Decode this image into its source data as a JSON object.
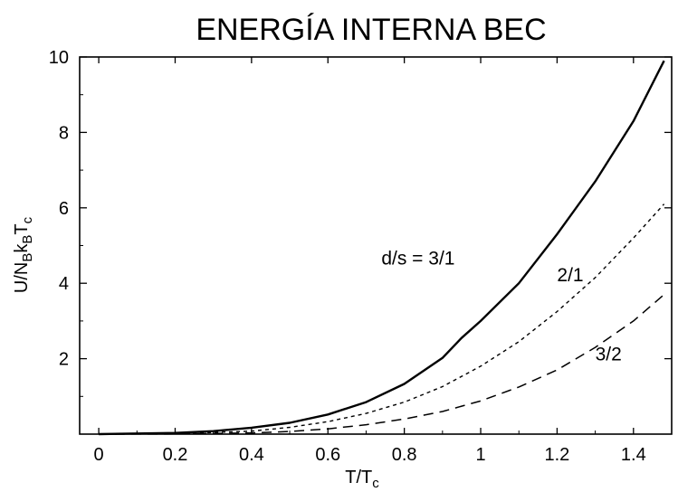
{
  "chart_data": {
    "type": "line",
    "title": "ENERGÍA INTERNA BEC",
    "xlabel": {
      "base": "T/T",
      "sub": "c"
    },
    "ylabel": {
      "parts": [
        {
          "t": "U/N",
          "sub": false
        },
        {
          "t": "B",
          "sub": true
        },
        {
          "t": "k",
          "sub": false
        },
        {
          "t": "B",
          "sub": true
        },
        {
          "t": "T",
          "sub": false
        },
        {
          "t": "c",
          "sub": true
        }
      ]
    },
    "xlim": [
      -0.05,
      1.5
    ],
    "ylim": [
      0,
      10
    ],
    "x_ticks": [
      0,
      0.2,
      0.4,
      0.6,
      0.8,
      1,
      1.2,
      1.4
    ],
    "x_tick_labels": [
      "0",
      "0.2",
      "0.4",
      "0.6",
      "0.8",
      "1",
      "1.2",
      "1.4"
    ],
    "y_ticks": [
      2,
      4,
      6,
      8,
      10
    ],
    "y_tick_labels": [
      "2",
      "4",
      "6",
      "8",
      "10"
    ],
    "grid": false,
    "series": [
      {
        "name": "d/s = 3/1",
        "style": "solid",
        "x": [
          0,
          0.2,
          0.3,
          0.4,
          0.5,
          0.6,
          0.7,
          0.8,
          0.9,
          0.95,
          1.0,
          1.1,
          1.2,
          1.3,
          1.4,
          1.48
        ],
        "y": [
          0,
          0.03,
          0.08,
          0.17,
          0.3,
          0.52,
          0.85,
          1.33,
          2.02,
          2.55,
          3.0,
          4.0,
          5.3,
          6.7,
          8.3,
          9.9
        ]
      },
      {
        "name": "2/1",
        "style": "dotted",
        "x": [
          0,
          0.2,
          0.4,
          0.5,
          0.6,
          0.7,
          0.8,
          0.9,
          1.0,
          1.1,
          1.2,
          1.3,
          1.4,
          1.48
        ],
        "y": [
          0,
          0.01,
          0.08,
          0.18,
          0.33,
          0.55,
          0.85,
          1.26,
          1.8,
          2.45,
          3.25,
          4.15,
          5.2,
          6.1
        ]
      },
      {
        "name": "3/2",
        "style": "dashed",
        "x": [
          0,
          0.2,
          0.4,
          0.5,
          0.6,
          0.7,
          0.8,
          0.9,
          1.0,
          1.1,
          1.2,
          1.3,
          1.4,
          1.48
        ],
        "y": [
          0,
          0.005,
          0.03,
          0.07,
          0.14,
          0.25,
          0.4,
          0.6,
          0.88,
          1.25,
          1.7,
          2.3,
          3.0,
          3.7
        ]
      }
    ],
    "annotations": [
      {
        "text": "d/s = 3/1",
        "series": 0
      },
      {
        "text": "2/1",
        "series": 1
      },
      {
        "text": "3/2",
        "series": 2
      }
    ]
  }
}
